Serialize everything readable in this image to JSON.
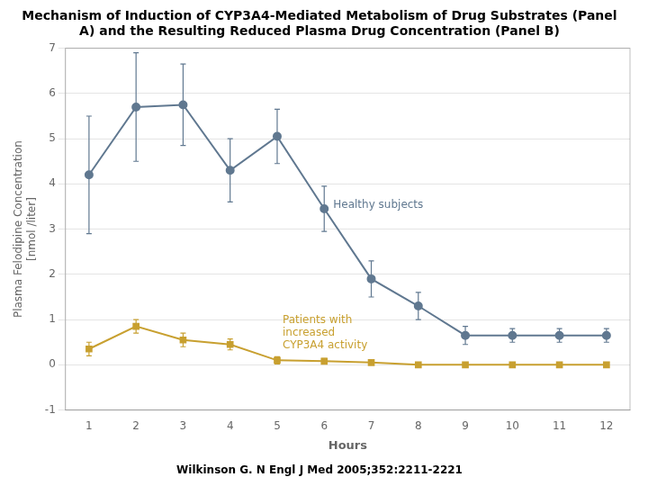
{
  "chart_data": {
    "type": "line",
    "title": "Mechanism of Induction of CYP3A4-Mediated Metabolism of Drug Substrates (Panel\nA) and the Resulting Reduced Plasma Drug Concentration (Panel B)",
    "subtitle": "Wilkinson G. N Engl J Med 2005;352:2211-2221",
    "x_label": "Hours",
    "y_label": "Plasma Felodipine Concentration\n[nmol /liter]",
    "x": [
      1,
      2,
      3,
      4,
      5,
      6,
      7,
      8,
      9,
      10,
      11,
      12
    ],
    "series": [
      {
        "name": "Healthy subjects",
        "color": "#607890",
        "marker": "circle",
        "line_style": "solid",
        "values": [
          4.2,
          5.7,
          5.75,
          4.3,
          5.05,
          3.45,
          1.9,
          1.3,
          0.65,
          0.65,
          0.65,
          0.65
        ],
        "errors": [
          1.3,
          1.2,
          0.9,
          0.7,
          0.6,
          0.5,
          0.4,
          0.3,
          0.2,
          0.15,
          0.15,
          0.15
        ]
      },
      {
        "name": "Patients with\nincreased\nCYP3A4 activity",
        "color": "#c8a030",
        "marker": "square",
        "line_style": "solid",
        "values": [
          0.35,
          0.85,
          0.55,
          0.45,
          0.1,
          0.08,
          0.05,
          0.0,
          0.0,
          0.0,
          0.0,
          0.0
        ],
        "errors": [
          0.15,
          0.15,
          0.15,
          0.12,
          0.08,
          0.06,
          0.04,
          0.03,
          0.02,
          0.02,
          0.02,
          0.02
        ]
      }
    ],
    "xlim": [
      0.5,
      12.5
    ],
    "xticks": [
      1,
      2,
      3,
      4,
      5,
      6,
      7,
      8,
      9,
      10,
      11,
      12
    ],
    "ylim": [
      -1,
      7
    ],
    "yticks": [
      -1,
      0,
      1,
      2,
      3,
      4,
      5,
      6,
      7
    ],
    "grid": "y",
    "legend": "none"
  }
}
